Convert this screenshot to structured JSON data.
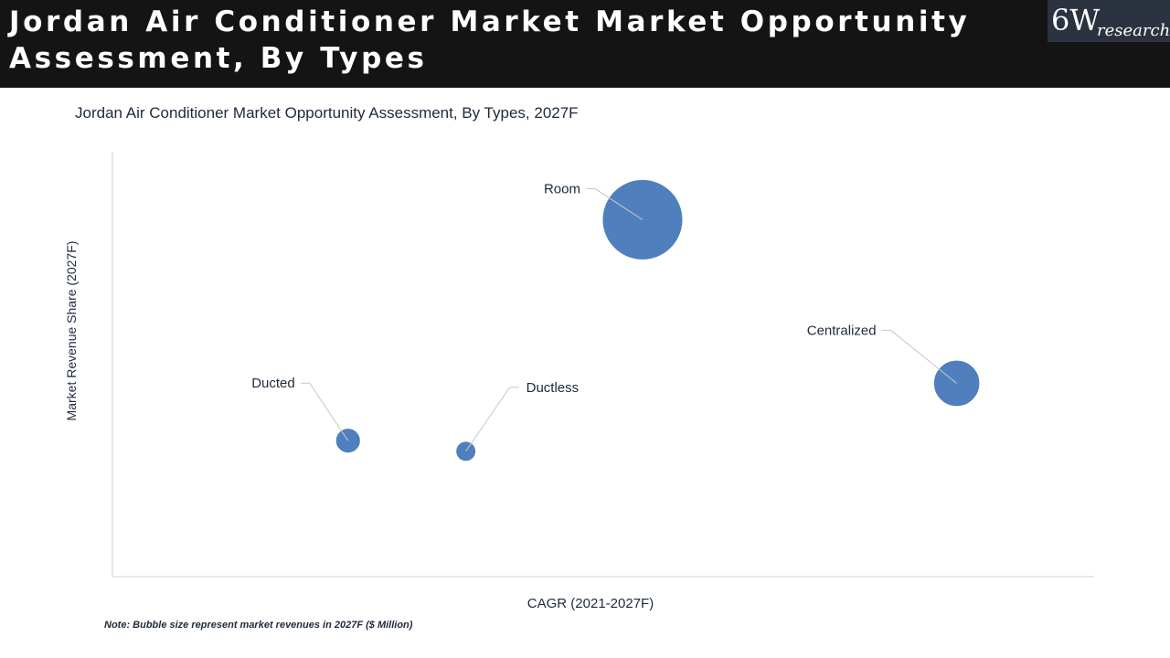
{
  "header": {
    "title": "Jordan Air Conditioner Market Market Opportunity\nAssessment, By Types"
  },
  "logo": {
    "main": "6W",
    "sub": "research"
  },
  "chart_data": {
    "type": "scatter",
    "subtype": "bubble",
    "title": "Jordan Air Conditioner Market Opportunity Assessment, By Types, 2027F",
    "xlabel": "CAGR (2021-2027F)",
    "ylabel": "Market Revenue Share (2027F)",
    "xlim": [
      0,
      100
    ],
    "ylim": [
      0,
      100
    ],
    "grid": false,
    "legend": "none",
    "series": [
      {
        "name": "Room",
        "x": 54,
        "y": 84,
        "size": 100
      },
      {
        "name": "Centralized",
        "x": 86,
        "y": 45.5,
        "size": 33
      },
      {
        "name": "Ducted",
        "x": 24,
        "y": 32,
        "size": 9.5
      },
      {
        "name": "Ductless",
        "x": 36,
        "y": 29.5,
        "size": 6.2
      }
    ],
    "bubble_color": "#4f7fbd"
  },
  "note": "Note: Bubble size represent market revenues in 2027F ($ Million)"
}
